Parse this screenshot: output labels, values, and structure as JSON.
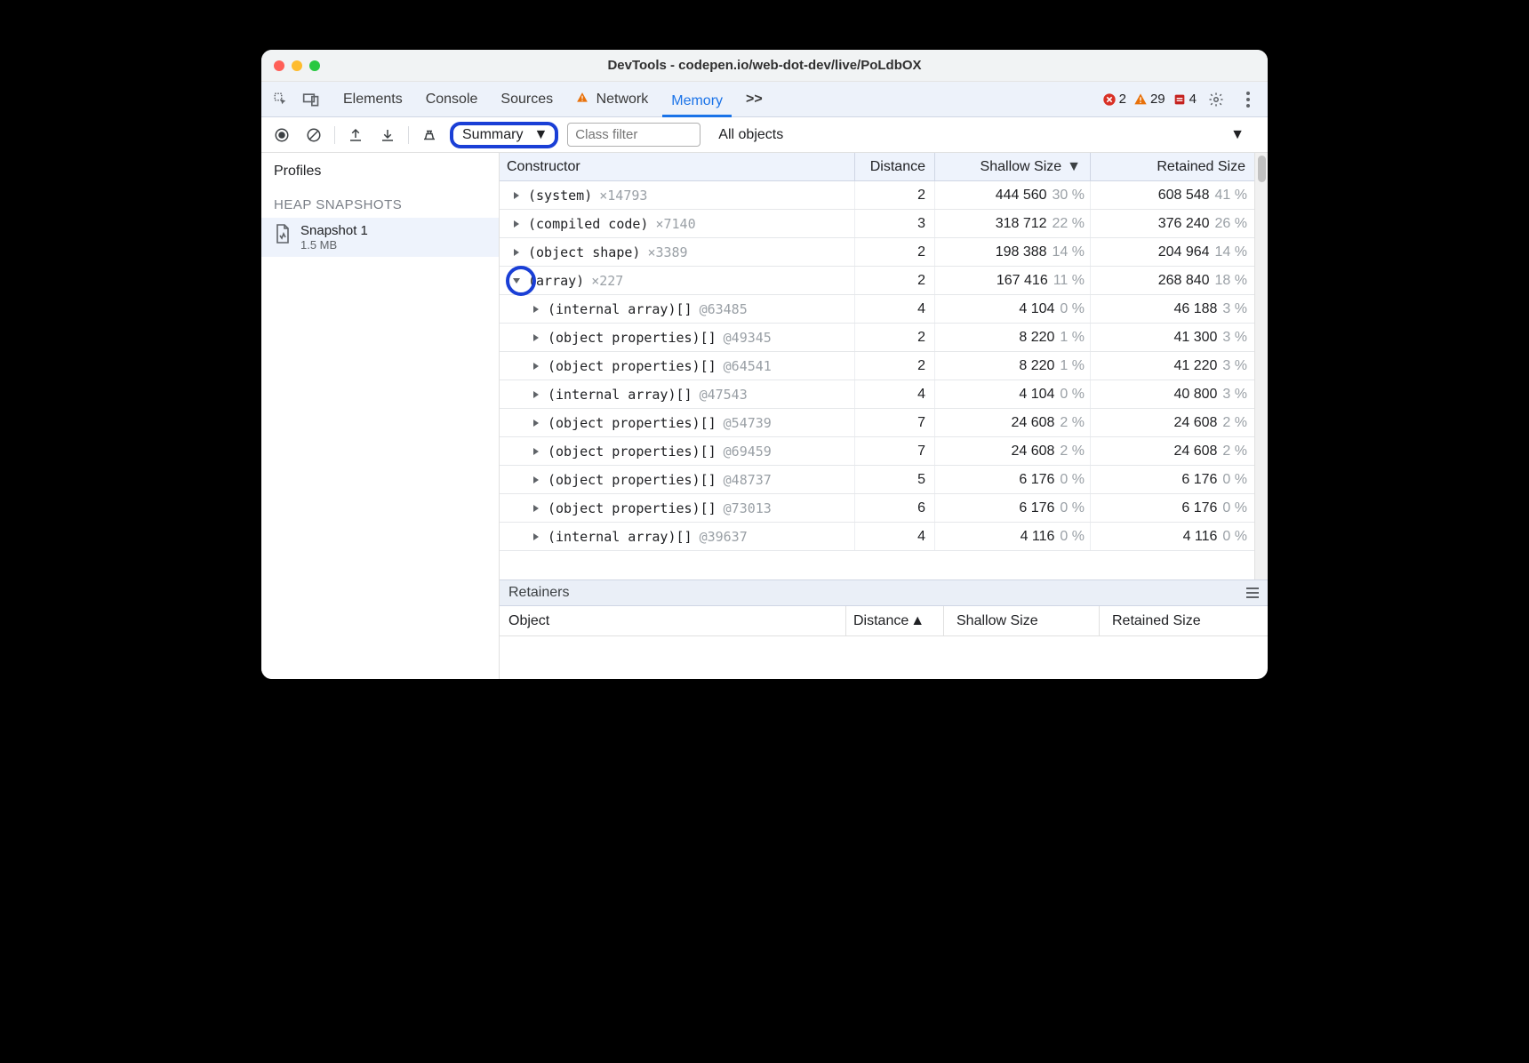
{
  "colors": {
    "accent_blue": "#1a73e8",
    "highlight_ring": "#1a3fd6",
    "header_bg": "#edf2fa",
    "subheader_bg": "#eef3fc",
    "text_muted": "#9aa0a6",
    "icon_gray": "#5f6368",
    "warn_orange": "#e8710a",
    "error_red": "#d93025",
    "badge_red": "#c5221f"
  },
  "window_title": "DevTools - codepen.io/web-dot-dev/live/PoLdbOX",
  "tabs": {
    "elements": "Elements",
    "console": "Console",
    "sources": "Sources",
    "network": "Network",
    "memory": "Memory",
    "more": ">>"
  },
  "status": {
    "errors": "2",
    "warnings": "29",
    "issues": "4"
  },
  "toolbar": {
    "summary_label": "Summary",
    "class_filter_placeholder": "Class filter",
    "all_objects_label": "All objects"
  },
  "sidebar": {
    "profiles": "Profiles",
    "heap_snapshots": "HEAP SNAPSHOTS",
    "snapshot_name": "Snapshot 1",
    "snapshot_size": "1.5 MB"
  },
  "columns": {
    "constructor": "Constructor",
    "distance": "Distance",
    "shallow": "Shallow Size",
    "retained": "Retained Size"
  },
  "sort_indicator": "▼",
  "rows": [
    {
      "indent": 1,
      "open": false,
      "name": "(system)",
      "count": "×14793",
      "distance": "2",
      "shallow": "444 560",
      "shallow_pct": "30 %",
      "retained": "608 548",
      "retained_pct": "41 %"
    },
    {
      "indent": 1,
      "open": false,
      "name": "(compiled code)",
      "count": "×7140",
      "distance": "3",
      "shallow": "318 712",
      "shallow_pct": "22 %",
      "retained": "376 240",
      "retained_pct": "26 %"
    },
    {
      "indent": 1,
      "open": false,
      "name": "(object shape)",
      "count": "×3389",
      "distance": "2",
      "shallow": "198 388",
      "shallow_pct": "14 %",
      "retained": "204 964",
      "retained_pct": "14 %"
    },
    {
      "indent": 1,
      "open": true,
      "highlight": true,
      "name": "(array)",
      "count": "×227",
      "distance": "2",
      "shallow": "167 416",
      "shallow_pct": "11 %",
      "retained": "268 840",
      "retained_pct": "18 %"
    },
    {
      "indent": 2,
      "open": false,
      "name": "(internal array)[]",
      "id": "@63485",
      "distance": "4",
      "shallow": "4 104",
      "shallow_pct": "0 %",
      "retained": "46 188",
      "retained_pct": "3 %"
    },
    {
      "indent": 2,
      "open": false,
      "name": "(object properties)[]",
      "id": "@49345",
      "distance": "2",
      "shallow": "8 220",
      "shallow_pct": "1 %",
      "retained": "41 300",
      "retained_pct": "3 %"
    },
    {
      "indent": 2,
      "open": false,
      "name": "(object properties)[]",
      "id": "@64541",
      "distance": "2",
      "shallow": "8 220",
      "shallow_pct": "1 %",
      "retained": "41 220",
      "retained_pct": "3 %"
    },
    {
      "indent": 2,
      "open": false,
      "name": "(internal array)[]",
      "id": "@47543",
      "distance": "4",
      "shallow": "4 104",
      "shallow_pct": "0 %",
      "retained": "40 800",
      "retained_pct": "3 %"
    },
    {
      "indent": 2,
      "open": false,
      "name": "(object properties)[]",
      "id": "@54739",
      "distance": "7",
      "shallow": "24 608",
      "shallow_pct": "2 %",
      "retained": "24 608",
      "retained_pct": "2 %"
    },
    {
      "indent": 2,
      "open": false,
      "name": "(object properties)[]",
      "id": "@69459",
      "distance": "7",
      "shallow": "24 608",
      "shallow_pct": "2 %",
      "retained": "24 608",
      "retained_pct": "2 %"
    },
    {
      "indent": 2,
      "open": false,
      "name": "(object properties)[]",
      "id": "@48737",
      "distance": "5",
      "shallow": "6 176",
      "shallow_pct": "0 %",
      "retained": "6 176",
      "retained_pct": "0 %"
    },
    {
      "indent": 2,
      "open": false,
      "name": "(object properties)[]",
      "id": "@73013",
      "distance": "6",
      "shallow": "6 176",
      "shallow_pct": "0 %",
      "retained": "6 176",
      "retained_pct": "0 %"
    },
    {
      "indent": 2,
      "open": false,
      "name": "(internal array)[]",
      "id": "@39637",
      "distance": "4",
      "shallow": "4 116",
      "shallow_pct": "0 %",
      "retained": "4 116",
      "retained_pct": "0 %"
    }
  ],
  "retainers": {
    "title": "Retainers",
    "cols": {
      "object": "Object",
      "distance": "Distance",
      "shallow": "Shallow Size",
      "retained": "Retained Size"
    },
    "sort_asc": "▲"
  }
}
